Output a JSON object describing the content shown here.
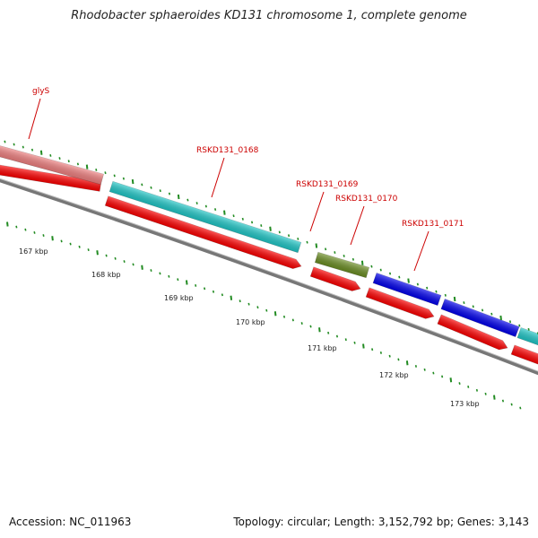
{
  "title": "Rhodobacter sphaeroides KD131 chromosome 1, complete genome",
  "footer": {
    "accession": "Accession: NC_011963",
    "summary": "Topology: circular; Length: 3,152,792 bp; Genes: 3,143"
  },
  "colors": {
    "cds_strand": "#ff0000",
    "gene_pink": "#f08080",
    "gene_cyan": "#20c8c8",
    "gene_olive": "#6b8e23",
    "gene_blue": "#0000ee",
    "backbone": "#777777",
    "tick_green": "#228b22"
  },
  "genes": [
    {
      "name": "glyS",
      "color": "gene_pink"
    },
    {
      "name": "RSKD131_0168",
      "color": "gene_cyan"
    },
    {
      "name": "RSKD131_0169",
      "color": "gene_olive"
    },
    {
      "name": "RSKD131_0170",
      "color": "gene_blue"
    },
    {
      "name": "RSKD131_0171",
      "color": "gene_blue"
    }
  ],
  "kbp_labels": [
    "167 kbp",
    "168 kbp",
    "169 kbp",
    "170 kbp",
    "171 kbp",
    "172 kbp",
    "173 kbp"
  ]
}
